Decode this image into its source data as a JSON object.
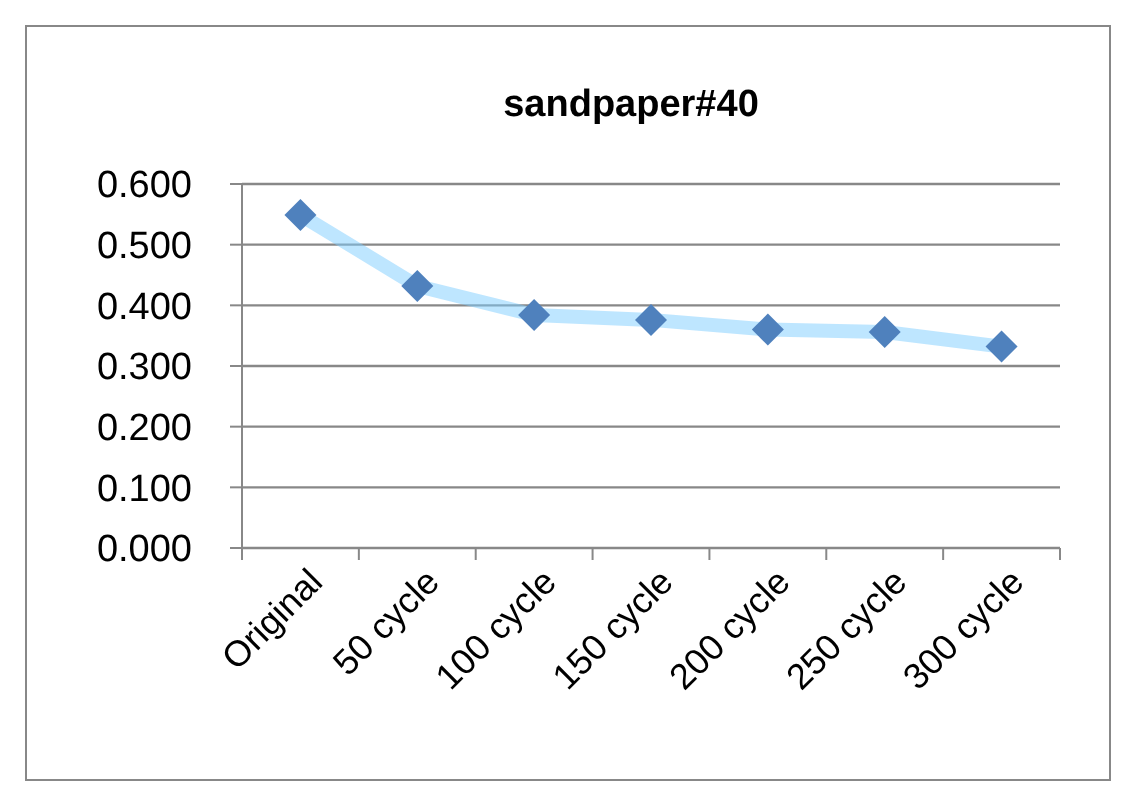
{
  "chart_data": {
    "type": "line",
    "title": "sandpaper#40",
    "categories": [
      "Original",
      "50 cycle",
      "100 cycle",
      "150 cycle",
      "200 cycle",
      "250 cycle",
      "300 cycle"
    ],
    "series": [
      {
        "color": "#4f81bd",
        "values": [
          0.549,
          0.432,
          0.384,
          0.376,
          0.36,
          0.356,
          0.332
        ]
      }
    ],
    "ylim": [
      0,
      0.6
    ],
    "yticks": [
      {
        "value": 0,
        "label": "0.000"
      },
      {
        "value": 0.1,
        "label": "0.100"
      },
      {
        "value": 0.2,
        "label": "0.200"
      },
      {
        "value": 0.3,
        "label": "0.300"
      },
      {
        "value": 0.4,
        "label": "0.400"
      },
      {
        "value": 0.5,
        "label": "0.500"
      },
      {
        "value": 0.6,
        "label": "0.600"
      }
    ],
    "grid": "y",
    "marker": "diamond"
  }
}
